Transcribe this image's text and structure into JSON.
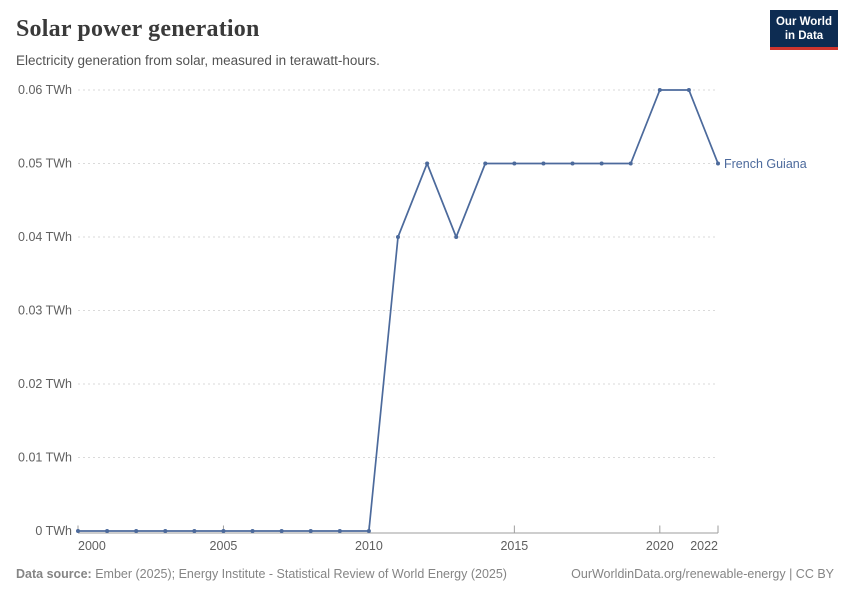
{
  "header": {
    "title": "Solar power generation",
    "subtitle": "Electricity generation from solar, measured in terawatt-hours.",
    "logo": {
      "line1": "Our World",
      "line2": "in Data"
    }
  },
  "chart_data": {
    "type": "line",
    "title": "Solar power generation",
    "subtitle": "Electricity generation from solar, measured in terawatt-hours.",
    "unit": "TWh",
    "xlim": [
      2000,
      2022
    ],
    "ylim": [
      0,
      0.06
    ],
    "grid": "dashed-horizontal-gridlines",
    "legend_position": "end-of-line-label",
    "x": [
      2000,
      2001,
      2002,
      2003,
      2004,
      2005,
      2006,
      2007,
      2008,
      2009,
      2010,
      2011,
      2012,
      2013,
      2014,
      2015,
      2016,
      2017,
      2018,
      2019,
      2020,
      2021,
      2022
    ],
    "series": [
      {
        "name": "French Guiana",
        "color": "#4c6a9c",
        "values": [
          0,
          0,
          0,
          0,
          0,
          0,
          0,
          0,
          0,
          0,
          0,
          0.04,
          0.05,
          0.04,
          0.05,
          0.05,
          0.05,
          0.05,
          0.05,
          0.05,
          0.06,
          0.06,
          0.05
        ]
      }
    ],
    "x_ticks": [
      {
        "year": 2000,
        "label": "2000"
      },
      {
        "year": 2005,
        "label": "2005"
      },
      {
        "year": 2010,
        "label": "2010"
      },
      {
        "year": 2015,
        "label": "2015"
      },
      {
        "year": 2020,
        "label": "2020"
      },
      {
        "year": 2022,
        "label": "2022"
      }
    ],
    "y_ticks": [
      {
        "value": 0,
        "label": "0 TWh"
      },
      {
        "value": 0.01,
        "label": "0.01 TWh"
      },
      {
        "value": 0.02,
        "label": "0.02 TWh"
      },
      {
        "value": 0.03,
        "label": "0.03 TWh"
      },
      {
        "value": 0.04,
        "label": "0.04 TWh"
      },
      {
        "value": 0.05,
        "label": "0.05 TWh"
      },
      {
        "value": 0.06,
        "label": "0.06 TWh"
      }
    ],
    "entity_label": "French Guiana"
  },
  "footer": {
    "source_label": "Data source:",
    "source_text": "Ember (2025); Energy Institute - Statistical Review of World Energy (2025)",
    "link_text": "OurWorldinData.org/renewable-energy | CC BY"
  },
  "colors": {
    "series_blue": "#4c6a9c",
    "gridline": "#dadada",
    "axis_line": "#9e9e9e",
    "tick_label": "#5f5f5f",
    "title_text": "#3a3a3a",
    "subtitle_text": "#535353",
    "footer_text": "#858585",
    "logo_background": "#0d2c52",
    "logo_red_bar": "#cf352e"
  }
}
